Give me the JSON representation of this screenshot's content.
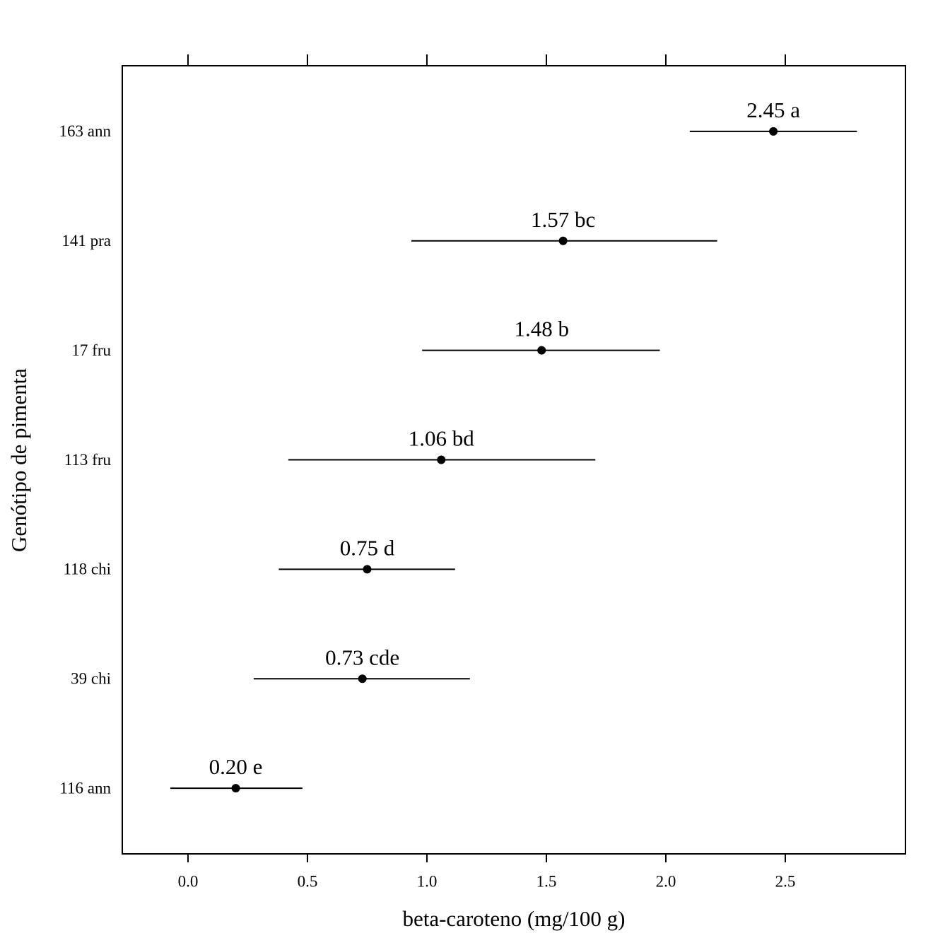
{
  "chart_data": {
    "type": "interval",
    "x_label": "beta-caroteno (mg/100 g)",
    "y_label": "Genótipo de pimenta",
    "categories": [
      "163 ann",
      "141 pra",
      "17 fru",
      "113 fru",
      "118 chi",
      "39 chi",
      "116 ann"
    ],
    "values": [
      2.45,
      1.57,
      1.48,
      1.06,
      0.75,
      0.73,
      0.2
    ],
    "value_labels": [
      "2.45 a",
      "1.57 bc",
      "1.48 b",
      "1.06 bd",
      "0.75 d",
      "0.73 cde",
      "0.20 e"
    ],
    "lower": [
      2.1,
      0.935,
      0.98,
      0.42,
      0.38,
      0.275,
      -0.074
    ],
    "upper": [
      2.8,
      2.215,
      1.975,
      1.705,
      1.118,
      1.18,
      0.479
    ],
    "color": "#000000",
    "xlim": [
      -0.275,
      3.003
    ],
    "xticks": [
      {
        "value": 0,
        "label": "0.0"
      },
      0.5,
      {
        "value": 1,
        "label": "1.0"
      },
      1.5,
      {
        "value": 2,
        "label": "2.0"
      },
      2.5
    ]
  }
}
